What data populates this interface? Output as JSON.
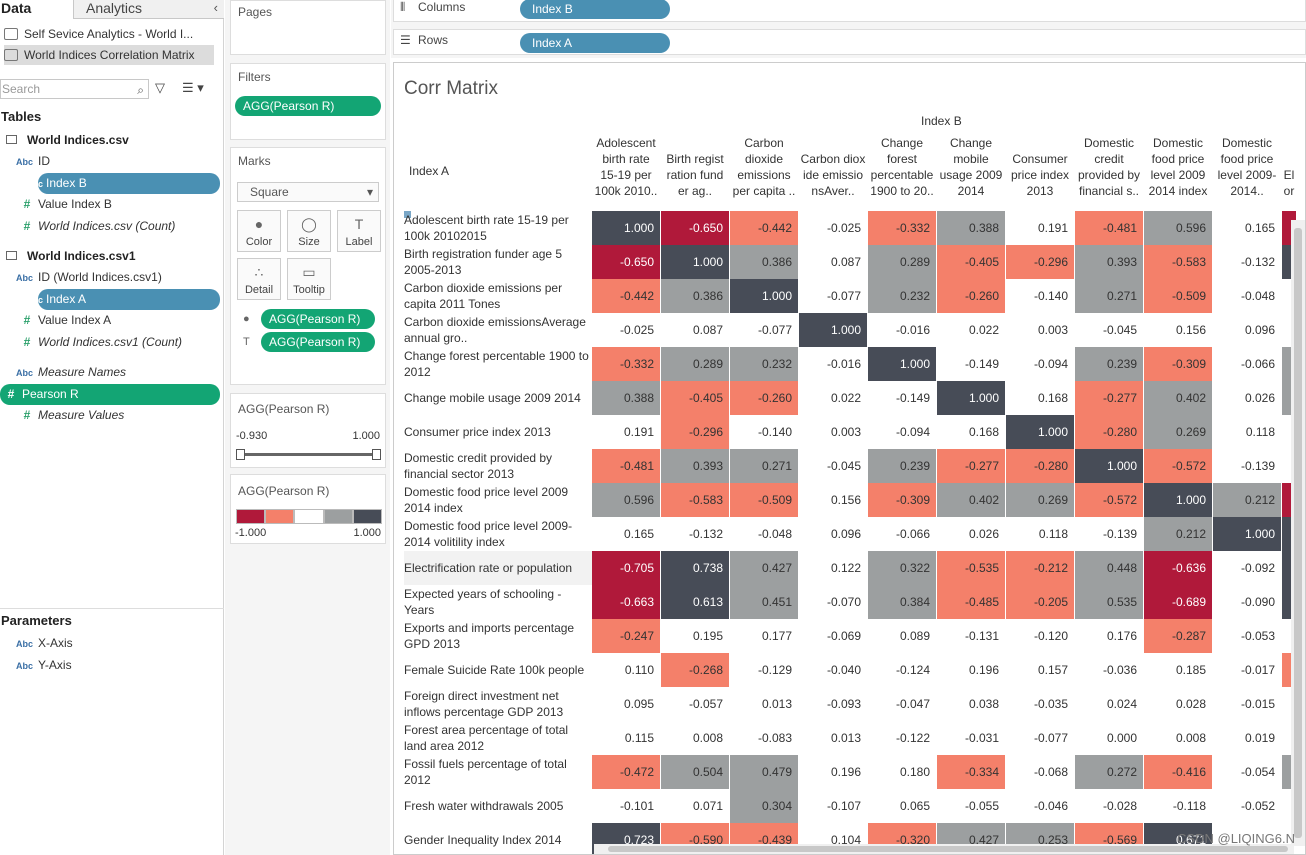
{
  "pane": {
    "tab_data": "Data",
    "tab_analytics": "Analytics",
    "collapse_icon": "chevron-left-icon",
    "datasources": [
      "Self Sevice Analytics - World I...",
      "World Indices Correlation Matrix"
    ],
    "search_placeholder": "Search",
    "tables_header": "Tables",
    "table1": {
      "name": "World Indices.csv",
      "fields": [
        {
          "type": "Abc",
          "name": "ID"
        },
        {
          "type": "Abc",
          "name": "Index B",
          "pill": true
        },
        {
          "type": "#",
          "name": "Value Index B"
        },
        {
          "type": "=#",
          "name": "World Indices.csv (Count)",
          "italic": true
        }
      ]
    },
    "table2": {
      "name": "World Indices.csv1",
      "fields": [
        {
          "type": "Abc",
          "name": "ID (World Indices.csv1)"
        },
        {
          "type": "Abc",
          "name": "Index A",
          "pill": true
        },
        {
          "type": "#",
          "name": "Value Index A"
        },
        {
          "type": "=#",
          "name": "World Indices.csv1 (Count)",
          "italic": true
        }
      ]
    },
    "extra": [
      {
        "type": "Abc",
        "name": "Measure Names",
        "italic": true
      },
      {
        "type": "=#",
        "name": "Pearson R",
        "pill": true
      },
      {
        "type": "#",
        "name": "Measure Values",
        "italic": true
      }
    ],
    "params_header": "Parameters",
    "params": [
      {
        "type": "Abc",
        "name": "X-Axis"
      },
      {
        "type": "Abc",
        "name": "Y-Axis"
      }
    ]
  },
  "cards": {
    "pages": "Pages",
    "filters": "Filters",
    "filter_pill": "AGG(Pearson R)",
    "marks": "Marks",
    "mark_type": "Square",
    "mark_btns": [
      "Color",
      "Size",
      "Label",
      "Detail",
      "Tooltip"
    ],
    "marks_pills": [
      "AGG(Pearson R)",
      "AGG(Pearson R)"
    ],
    "range_title": "AGG(Pearson R)",
    "range_min": "-0.930",
    "range_max": "1.000",
    "legend_title": "AGG(Pearson R)",
    "legend_min": "-1.000",
    "legend_max": "1.000",
    "legend_colors": [
      "#b0193a",
      "#f4806a",
      "#ffffff",
      "#9c9fa0",
      "#474c57"
    ]
  },
  "shelves": {
    "columns_label": "Columns",
    "columns_pill": "Index B",
    "rows_label": "Rows",
    "rows_pill": "Index A"
  },
  "view": {
    "title": "Corr Matrix",
    "col_group": "Index B",
    "row_header": "Index A",
    "col_headers": [
      "Adolescent birth rate 15-19 per 100k 2010..",
      "Birth regist ration fund er ag..",
      "Carbon dioxide emissions per capita ..",
      "Carbon diox ide emissio nsAver..",
      "Change forest percentable 1900 to 20..",
      "Change mobile usage 2009 2014",
      "Consumer price index 2013",
      "Domestic credit provided by financial s..",
      "Domestic food price level 2009 2014 index",
      "Domestic food price level 2009-2014..",
      "El or"
    ],
    "rows": [
      {
        "label": "Adolescent birth rate 15-19 per 100k 20102015",
        "values": [
          "1.000",
          "-0.650",
          "-0.442",
          "-0.025",
          "-0.332",
          "0.388",
          "0.191",
          "-0.481",
          "0.596",
          "0.165"
        ]
      },
      {
        "label": "Birth registration funder age 5 2005-2013",
        "values": [
          "-0.650",
          "1.000",
          "0.386",
          "0.087",
          "0.289",
          "-0.405",
          "-0.296",
          "0.393",
          "-0.583",
          "-0.132"
        ]
      },
      {
        "label": "Carbon dioxide emissions per capita 2011 Tones",
        "values": [
          "-0.442",
          "0.386",
          "1.000",
          "-0.077",
          "0.232",
          "-0.260",
          "-0.140",
          "0.271",
          "-0.509",
          "-0.048"
        ]
      },
      {
        "label": "Carbon dioxide emissionsAverage annual gro..",
        "values": [
          "-0.025",
          "0.087",
          "-0.077",
          "1.000",
          "-0.016",
          "0.022",
          "0.003",
          "-0.045",
          "0.156",
          "0.096"
        ]
      },
      {
        "label": "Change forest percentable 1900 to 2012",
        "values": [
          "-0.332",
          "0.289",
          "0.232",
          "-0.016",
          "1.000",
          "-0.149",
          "-0.094",
          "0.239",
          "-0.309",
          "-0.066"
        ]
      },
      {
        "label": "Change mobile usage 2009 2014",
        "values": [
          "0.388",
          "-0.405",
          "-0.260",
          "0.022",
          "-0.149",
          "1.000",
          "0.168",
          "-0.277",
          "0.402",
          "0.026"
        ]
      },
      {
        "label": "Consumer price index 2013",
        "values": [
          "0.191",
          "-0.296",
          "-0.140",
          "0.003",
          "-0.094",
          "0.168",
          "1.000",
          "-0.280",
          "0.269",
          "0.118"
        ]
      },
      {
        "label": "Domestic credit provided by financial sector 2013",
        "values": [
          "-0.481",
          "0.393",
          "0.271",
          "-0.045",
          "0.239",
          "-0.277",
          "-0.280",
          "1.000",
          "-0.572",
          "-0.139"
        ]
      },
      {
        "label": "Domestic food price level 2009 2014 index",
        "values": [
          "0.596",
          "-0.583",
          "-0.509",
          "0.156",
          "-0.309",
          "0.402",
          "0.269",
          "-0.572",
          "1.000",
          "0.212"
        ]
      },
      {
        "label": "Domestic food price level 2009-2014 volitility index",
        "values": [
          "0.165",
          "-0.132",
          "-0.048",
          "0.096",
          "-0.066",
          "0.026",
          "0.118",
          "-0.139",
          "0.212",
          "1.000"
        ]
      },
      {
        "label": "Electrification rate or population",
        "values": [
          "-0.705",
          "0.738",
          "0.427",
          "0.122",
          "0.322",
          "-0.535",
          "-0.212",
          "0.448",
          "-0.636",
          "-0.092"
        ]
      },
      {
        "label": "Expected years of schooling - Years",
        "values": [
          "-0.663",
          "0.613",
          "0.451",
          "-0.070",
          "0.384",
          "-0.485",
          "-0.205",
          "0.535",
          "-0.689",
          "-0.090"
        ]
      },
      {
        "label": "Exports and imports percentage GPD 2013",
        "values": [
          "-0.247",
          "0.195",
          "0.177",
          "-0.069",
          "0.089",
          "-0.131",
          "-0.120",
          "0.176",
          "-0.287",
          "-0.053"
        ]
      },
      {
        "label": "Female Suicide Rate 100k people",
        "values": [
          "0.110",
          "-0.268",
          "-0.129",
          "-0.040",
          "-0.124",
          "0.196",
          "0.157",
          "-0.036",
          "0.185",
          "-0.017"
        ]
      },
      {
        "label": "Foreign direct investment net inflows percentage GDP 2013",
        "values": [
          "0.095",
          "-0.057",
          "0.013",
          "-0.093",
          "-0.047",
          "0.038",
          "-0.035",
          "0.024",
          "0.028",
          "-0.015"
        ]
      },
      {
        "label": "Forest area percentage of total land area 2012",
        "values": [
          "0.115",
          "0.008",
          "-0.083",
          "0.013",
          "-0.122",
          "-0.031",
          "-0.077",
          "0.000",
          "0.008",
          "0.019"
        ]
      },
      {
        "label": "Fossil fuels percentage of total 2012",
        "values": [
          "-0.472",
          "0.504",
          "0.479",
          "0.196",
          "0.180",
          "-0.334",
          "-0.068",
          "0.272",
          "-0.416",
          "-0.054"
        ]
      },
      {
        "label": "Fresh water withdrawals 2005",
        "values": [
          "-0.101",
          "0.071",
          "0.304",
          "-0.107",
          "0.065",
          "-0.055",
          "-0.046",
          "-0.028",
          "-0.118",
          "-0.052"
        ]
      },
      {
        "label": "Gender Inequality Index 2014",
        "values": [
          "0.723",
          "-0.590",
          "-0.439",
          "0.104",
          "-0.320",
          "0.427",
          "0.253",
          "-0.569",
          "0.671",
          ""
        ]
      }
    ],
    "edge_colors": [
      "#b0193a",
      "#474c57",
      "",
      "",
      "#9c9fa0",
      "#9c9fa0",
      "",
      "",
      "#b0193a",
      "#474c57",
      "#474c57",
      "#474c57",
      "",
      "#f4806a",
      "",
      "",
      "#9c9fa0",
      "",
      ""
    ],
    "watermark": "CSDN @LIQING6.N"
  }
}
